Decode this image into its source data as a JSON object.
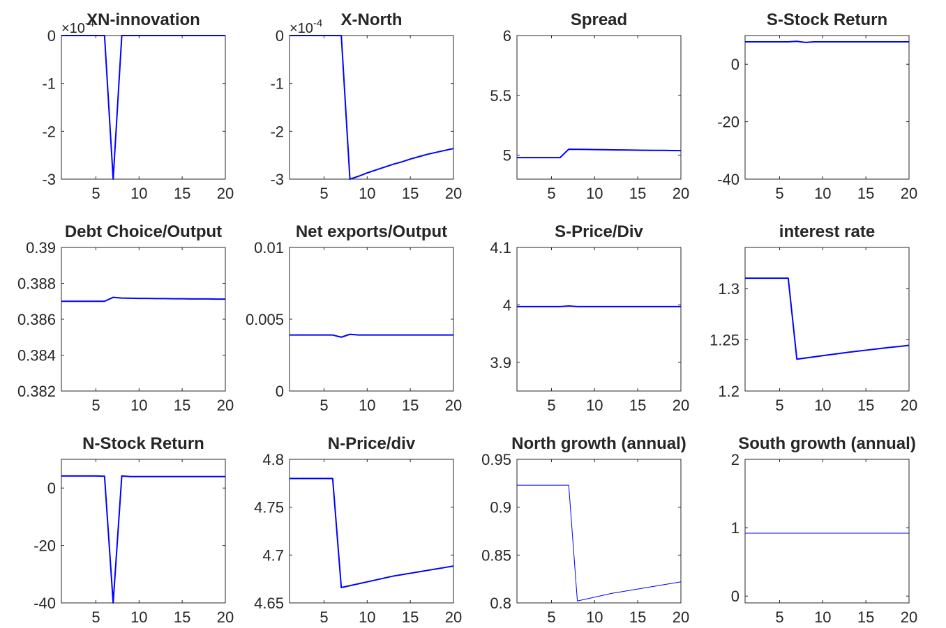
{
  "figure": {
    "line_color": "#0000ff",
    "axis_color": "#262626",
    "background": "#ffffff"
  },
  "chart_data": [
    {
      "type": "line",
      "title": "XN-innovation",
      "xlabel": "",
      "ylabel": "",
      "xlim": [
        1,
        20
      ],
      "ylim": [
        -3,
        0
      ],
      "xticks": [
        5,
        10,
        15,
        20
      ],
      "yticks": [
        0,
        -1,
        -2,
        -3
      ],
      "yexponent": "-4",
      "grid": false,
      "line_width": 2,
      "x": [
        1,
        2,
        3,
        4,
        5,
        6,
        7,
        8,
        9,
        10,
        11,
        12,
        13,
        14,
        15,
        16,
        17,
        18,
        19,
        20
      ],
      "y": [
        0,
        0,
        0,
        0,
        0,
        0,
        -3,
        0,
        0,
        0,
        0,
        0,
        0,
        0,
        0,
        0,
        0,
        0,
        0,
        0
      ]
    },
    {
      "type": "line",
      "title": "X-North",
      "xlabel": "",
      "ylabel": "",
      "xlim": [
        1,
        20
      ],
      "ylim": [
        -3,
        0
      ],
      "xticks": [
        5,
        10,
        15,
        20
      ],
      "yticks": [
        0,
        -1,
        -2,
        -3
      ],
      "yexponent": "-4",
      "grid": false,
      "line_width": 2,
      "x": [
        1,
        2,
        3,
        4,
        5,
        6,
        7,
        8,
        9,
        10,
        11,
        12,
        13,
        14,
        15,
        16,
        17,
        18,
        19,
        20
      ],
      "y": [
        0,
        0,
        0,
        0,
        0,
        0,
        0,
        -3,
        -2.94,
        -2.87,
        -2.81,
        -2.75,
        -2.69,
        -2.64,
        -2.58,
        -2.53,
        -2.48,
        -2.44,
        -2.4,
        -2.36
      ]
    },
    {
      "type": "line",
      "title": "Spread",
      "xlabel": "",
      "ylabel": "",
      "xlim": [
        1,
        20
      ],
      "ylim": [
        4.8,
        6
      ],
      "xticks": [
        5,
        10,
        15,
        20
      ],
      "yticks": [
        5,
        5.5,
        6
      ],
      "grid": false,
      "line_width": 2,
      "x": [
        1,
        2,
        3,
        4,
        5,
        6,
        7,
        8,
        9,
        10,
        11,
        12,
        13,
        14,
        15,
        16,
        17,
        18,
        19,
        20
      ],
      "y": [
        4.98,
        4.98,
        4.98,
        4.98,
        4.98,
        4.98,
        5.05,
        5.049,
        5.048,
        5.047,
        5.046,
        5.045,
        5.044,
        5.043,
        5.042,
        5.041,
        5.04,
        5.04,
        5.039,
        5.038
      ]
    },
    {
      "type": "line",
      "title": "S-Stock Return",
      "xlabel": "",
      "ylabel": "",
      "xlim": [
        1,
        20
      ],
      "ylim": [
        -40,
        10
      ],
      "xticks": [
        5,
        10,
        15,
        20
      ],
      "yticks": [
        0,
        -20,
        -40
      ],
      "grid": false,
      "line_width": 2,
      "x": [
        1,
        2,
        3,
        4,
        5,
        6,
        7,
        8,
        9,
        10,
        11,
        12,
        13,
        14,
        15,
        16,
        17,
        18,
        19,
        20
      ],
      "y": [
        7.8,
        7.8,
        7.8,
        7.8,
        7.8,
        7.8,
        8.0,
        7.6,
        7.8,
        7.8,
        7.8,
        7.8,
        7.8,
        7.8,
        7.8,
        7.8,
        7.8,
        7.8,
        7.8,
        7.8
      ]
    },
    {
      "type": "line",
      "title": "Debt Choice/Output",
      "xlabel": "",
      "ylabel": "",
      "xlim": [
        1,
        20
      ],
      "ylim": [
        0.382,
        0.39
      ],
      "xticks": [
        5,
        10,
        15,
        20
      ],
      "yticks": [
        0.39,
        0.388,
        0.386,
        0.384,
        0.382
      ],
      "grid": false,
      "line_width": 2,
      "x": [
        1,
        2,
        3,
        4,
        5,
        6,
        7,
        8,
        9,
        10,
        11,
        12,
        13,
        14,
        15,
        16,
        17,
        18,
        19,
        20
      ],
      "y": [
        0.387,
        0.387,
        0.387,
        0.387,
        0.387,
        0.387,
        0.38722,
        0.38718,
        0.38717,
        0.38716,
        0.38716,
        0.38715,
        0.38715,
        0.38714,
        0.38714,
        0.38713,
        0.38713,
        0.38713,
        0.38712,
        0.38712
      ]
    },
    {
      "type": "line",
      "title": "Net exports/Output",
      "xlabel": "",
      "ylabel": "",
      "xlim": [
        1,
        20
      ],
      "ylim": [
        0,
        0.01
      ],
      "xticks": [
        5,
        10,
        15,
        20
      ],
      "yticks": [
        0.01,
        0.005,
        0
      ],
      "grid": false,
      "line_width": 2,
      "x": [
        1,
        2,
        3,
        4,
        5,
        6,
        7,
        8,
        9,
        10,
        11,
        12,
        13,
        14,
        15,
        16,
        17,
        18,
        19,
        20
      ],
      "y": [
        0.0039,
        0.0039,
        0.0039,
        0.0039,
        0.0039,
        0.0039,
        0.00375,
        0.00395,
        0.0039,
        0.0039,
        0.0039,
        0.0039,
        0.0039,
        0.0039,
        0.0039,
        0.0039,
        0.0039,
        0.0039,
        0.0039,
        0.0039
      ]
    },
    {
      "type": "line",
      "title": "S-Price/Div",
      "xlabel": "",
      "ylabel": "",
      "xlim": [
        1,
        20
      ],
      "ylim": [
        3.85,
        4.1
      ],
      "xticks": [
        5,
        10,
        15,
        20
      ],
      "yticks": [
        4.1,
        4,
        3.9
      ],
      "grid": false,
      "line_width": 2,
      "x": [
        1,
        2,
        3,
        4,
        5,
        6,
        7,
        8,
        9,
        10,
        11,
        12,
        13,
        14,
        15,
        16,
        17,
        18,
        19,
        20
      ],
      "y": [
        3.997,
        3.997,
        3.997,
        3.997,
        3.997,
        3.997,
        3.998,
        3.997,
        3.997,
        3.997,
        3.997,
        3.997,
        3.997,
        3.997,
        3.997,
        3.997,
        3.997,
        3.997,
        3.997,
        3.997
      ]
    },
    {
      "type": "line",
      "title": "interest rate",
      "xlabel": "",
      "ylabel": "",
      "xlim": [
        1,
        20
      ],
      "ylim": [
        1.2,
        1.34
      ],
      "xticks": [
        5,
        10,
        15,
        20
      ],
      "yticks": [
        1.3,
        1.25,
        1.2
      ],
      "grid": false,
      "line_width": 2,
      "x": [
        1,
        2,
        3,
        4,
        5,
        6,
        7,
        8,
        9,
        10,
        11,
        12,
        13,
        14,
        15,
        16,
        17,
        18,
        19,
        20
      ],
      "y": [
        1.31,
        1.31,
        1.31,
        1.31,
        1.31,
        1.31,
        1.231,
        1.2322,
        1.2333,
        1.2345,
        1.2356,
        1.2367,
        1.2378,
        1.2388,
        1.2398,
        1.2408,
        1.2418,
        1.2427,
        1.2436,
        1.2445
      ]
    },
    {
      "type": "line",
      "title": "N-Stock Return",
      "xlabel": "",
      "ylabel": "",
      "xlim": [
        1,
        20
      ],
      "ylim": [
        -40,
        10
      ],
      "xticks": [
        5,
        10,
        15,
        20
      ],
      "yticks": [
        0,
        -20,
        -40
      ],
      "grid": false,
      "line_width": 2,
      "x": [
        1,
        2,
        3,
        4,
        5,
        6,
        7,
        8,
        9,
        10,
        11,
        12,
        13,
        14,
        15,
        16,
        17,
        18,
        19,
        20
      ],
      "y": [
        4.2,
        4.2,
        4.2,
        4.2,
        4.2,
        4.1,
        -40,
        4.2,
        4.0,
        4.0,
        4.0,
        4.0,
        4.0,
        4.0,
        4.0,
        4.0,
        4.0,
        4.0,
        4.0,
        4.0
      ]
    },
    {
      "type": "line",
      "title": "N-Price/div",
      "xlabel": "",
      "ylabel": "",
      "xlim": [
        1,
        20
      ],
      "ylim": [
        4.65,
        4.8
      ],
      "xticks": [
        5,
        10,
        15,
        20
      ],
      "yticks": [
        4.8,
        4.75,
        4.7,
        4.65
      ],
      "grid": false,
      "line_width": 2,
      "x": [
        1,
        2,
        3,
        4,
        5,
        6,
        7,
        8,
        9,
        10,
        11,
        12,
        13,
        14,
        15,
        16,
        17,
        18,
        19,
        20
      ],
      "y": [
        4.78,
        4.78,
        4.78,
        4.78,
        4.78,
        4.78,
        4.666,
        4.668,
        4.67,
        4.672,
        4.674,
        4.676,
        4.678,
        4.6795,
        4.681,
        4.6825,
        4.684,
        4.6855,
        4.687,
        4.6885
      ]
    },
    {
      "type": "line",
      "title": "North growth (annual)",
      "xlabel": "",
      "ylabel": "",
      "xlim": [
        1,
        20
      ],
      "ylim": [
        0.8,
        0.95
      ],
      "xticks": [
        5,
        10,
        15,
        20
      ],
      "yticks": [
        0.95,
        0.9,
        0.85,
        0.8
      ],
      "grid": false,
      "line_width": 1,
      "x": [
        1,
        2,
        3,
        4,
        5,
        6,
        7,
        8,
        9,
        10,
        11,
        12,
        13,
        14,
        15,
        16,
        17,
        18,
        19,
        20
      ],
      "y": [
        0.923,
        0.923,
        0.923,
        0.923,
        0.923,
        0.923,
        0.923,
        0.802,
        0.804,
        0.806,
        0.808,
        0.81,
        0.8115,
        0.813,
        0.8145,
        0.816,
        0.8175,
        0.819,
        0.8205,
        0.822
      ]
    },
    {
      "type": "line",
      "title": "South growth (annual)",
      "xlabel": "",
      "ylabel": "",
      "xlim": [
        1,
        20
      ],
      "ylim": [
        -0.1,
        2
      ],
      "xticks": [
        5,
        10,
        15,
        20
      ],
      "yticks": [
        2,
        1,
        0
      ],
      "grid": false,
      "line_width": 1,
      "x": [
        1,
        2,
        3,
        4,
        5,
        6,
        7,
        8,
        9,
        10,
        11,
        12,
        13,
        14,
        15,
        16,
        17,
        18,
        19,
        20
      ],
      "y": [
        0.92,
        0.92,
        0.92,
        0.92,
        0.92,
        0.92,
        0.92,
        0.92,
        0.92,
        0.92,
        0.92,
        0.92,
        0.92,
        0.92,
        0.92,
        0.92,
        0.92,
        0.92,
        0.92,
        0.92
      ]
    }
  ]
}
